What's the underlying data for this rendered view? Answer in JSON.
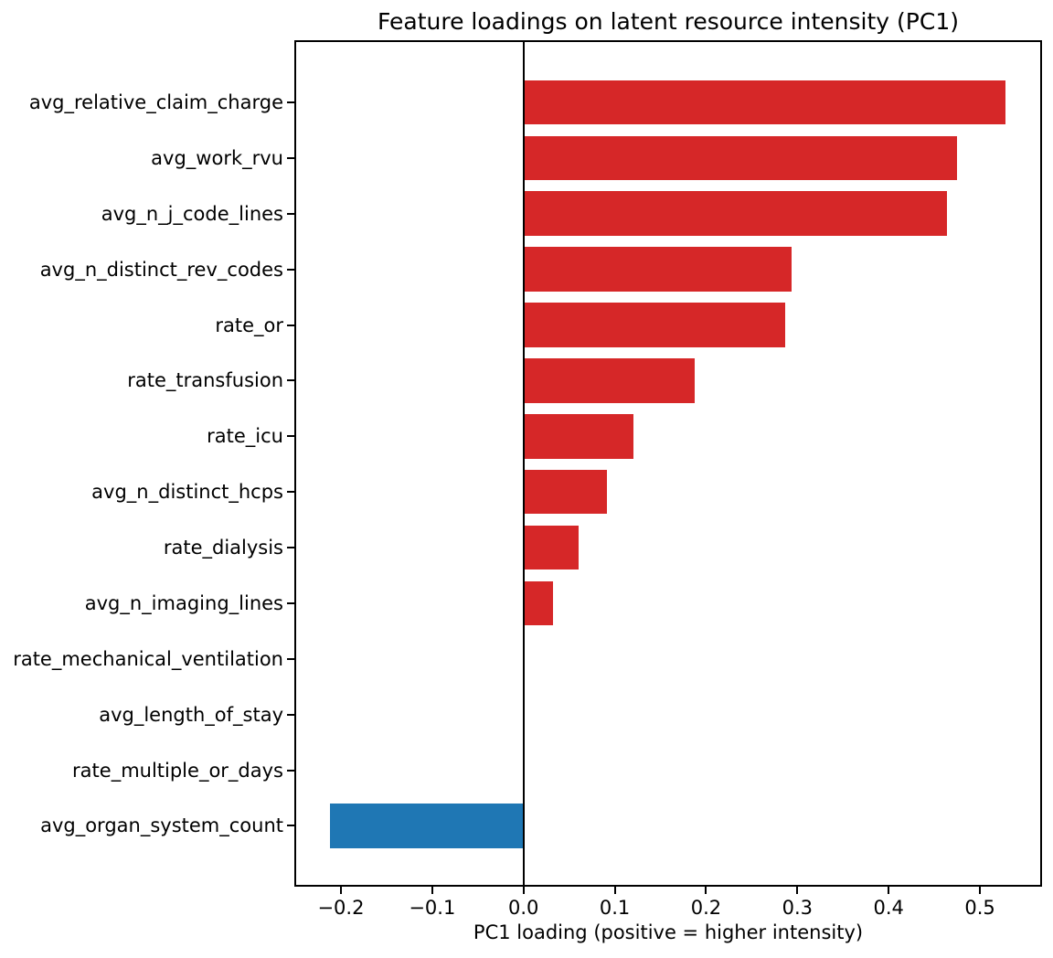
{
  "figure": {
    "title": "Feature loadings on latent resource intensity (PC1)",
    "xlabel": "PC1 loading (positive = higher intensity)"
  },
  "chart_data": {
    "type": "bar",
    "orientation": "horizontal",
    "title": "Feature loadings on latent resource intensity (PC1)",
    "xlabel": "PC1 loading (positive = higher intensity)",
    "ylabel": "",
    "categories": [
      "avg_relative_claim_charge",
      "avg_work_rvu",
      "avg_n_j_code_lines",
      "avg_n_distinct_rev_codes",
      "rate_or",
      "rate_transfusion",
      "rate_icu",
      "avg_n_distinct_hcps",
      "rate_dialysis",
      "avg_n_imaging_lines",
      "rate_mechanical_ventilation",
      "avg_length_of_stay",
      "rate_multiple_or_days",
      "avg_organ_system_count"
    ],
    "values": [
      0.528,
      0.475,
      0.464,
      0.294,
      0.287,
      0.188,
      0.12,
      0.091,
      0.06,
      0.032,
      0.0,
      0.0,
      0.0,
      -0.212
    ],
    "xlim": [
      -0.249,
      0.566
    ],
    "xticks": [
      -0.2,
      -0.1,
      0.0,
      0.1,
      0.2,
      0.3,
      0.4,
      0.5
    ],
    "xtick_labels": [
      "−0.2",
      "−0.1",
      "0.0",
      "0.1",
      "0.2",
      "0.3",
      "0.4",
      "0.5"
    ],
    "colors": {
      "positive_bar": "#d62728",
      "negative_bar": "#1f77b4",
      "axis": "#000000"
    },
    "zero_line": true,
    "grid": false,
    "legend": "none"
  }
}
